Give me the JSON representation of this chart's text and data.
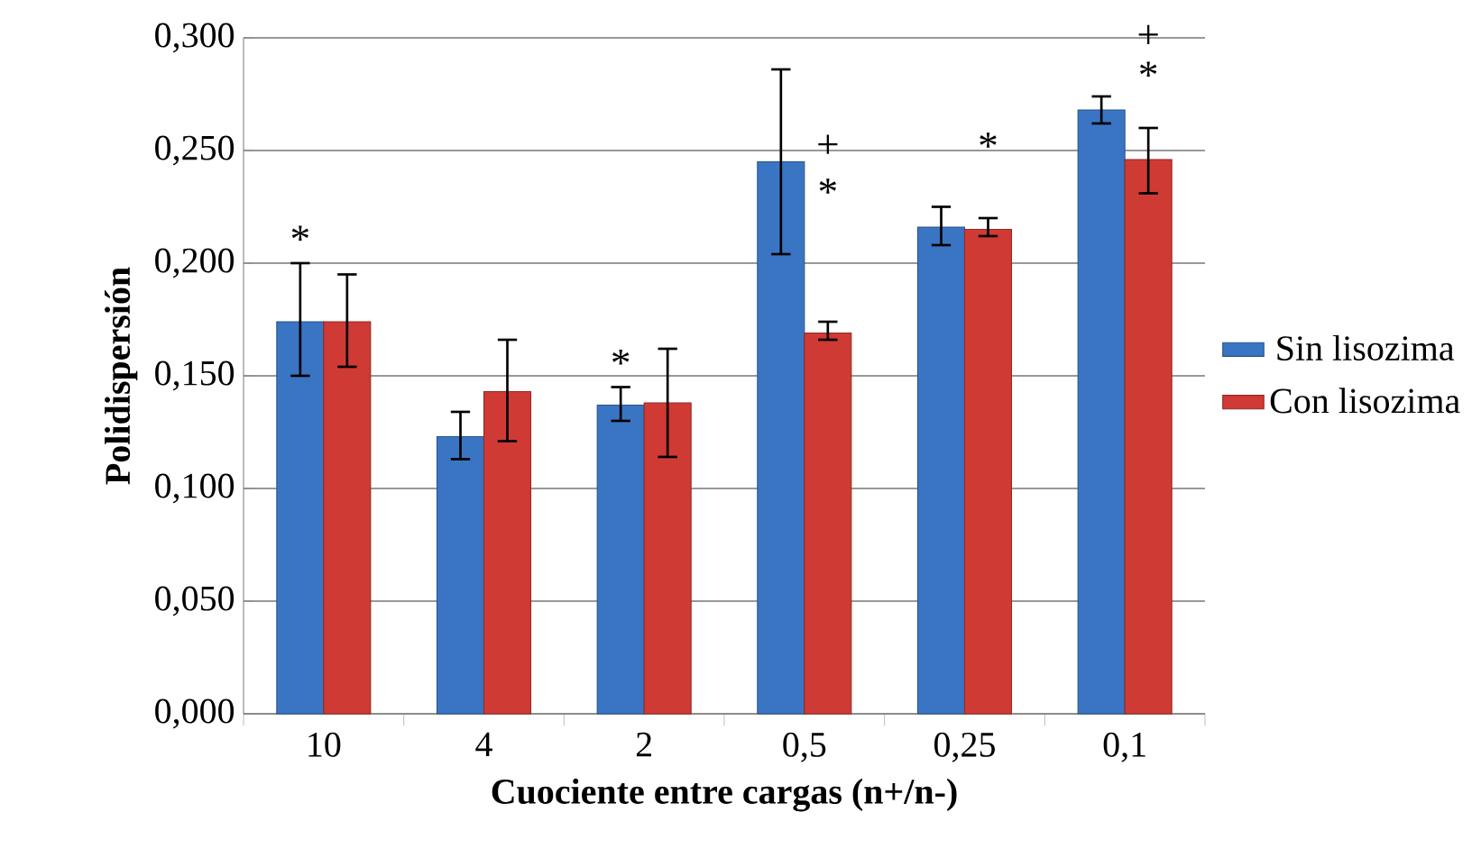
{
  "chart_data": {
    "type": "bar",
    "xlabel": "Cuociente entre cargas (n+/n-)",
    "ylabel": "Polidispersión",
    "categories": [
      "10",
      "4",
      "2",
      "0,5",
      "0,25",
      "0,1"
    ],
    "series": [
      {
        "name": "Sin lisozima",
        "color": "#3a75c4",
        "values": [
          0.174,
          0.123,
          0.137,
          0.245,
          0.216,
          0.268
        ],
        "errors": [
          [
            0.15,
            0.2
          ],
          [
            0.113,
            0.134
          ],
          [
            0.13,
            0.145
          ],
          [
            0.204,
            0.286
          ],
          [
            0.208,
            0.225
          ],
          [
            0.262,
            0.274
          ]
        ]
      },
      {
        "name": "Con lisozima",
        "color": "#d03a34",
        "values": [
          0.174,
          0.143,
          0.138,
          0.169,
          0.215,
          0.246
        ],
        "errors": [
          [
            0.154,
            0.195
          ],
          [
            0.121,
            0.166
          ],
          [
            0.114,
            0.162
          ],
          [
            0.166,
            0.174
          ],
          [
            0.212,
            0.22
          ],
          [
            0.231,
            0.26
          ]
        ]
      }
    ],
    "ylim": [
      0,
      0.3
    ],
    "yticks": [
      {
        "value": 0,
        "label": "0,000"
      },
      {
        "value": 0.05,
        "label": "0,050"
      },
      {
        "value": 0.1,
        "label": "0,100"
      },
      {
        "value": 0.15,
        "label": "0,150"
      },
      {
        "value": 0.2,
        "label": "0,200"
      },
      {
        "value": 0.25,
        "label": "0,250"
      },
      {
        "value": 0.3,
        "label": "0,300"
      }
    ],
    "grid": "y",
    "legend": "right",
    "annotations": [
      "*",
      "*",
      "+",
      "*",
      "*",
      "+",
      "*"
    ]
  }
}
